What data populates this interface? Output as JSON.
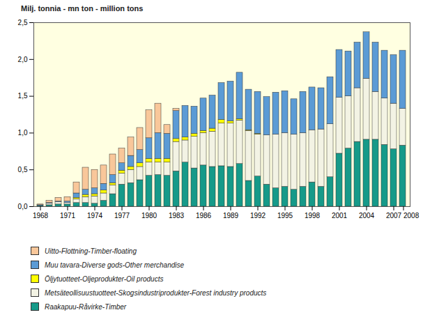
{
  "chart_data": {
    "type": "bar",
    "title": "Milj. tonnia - mn ton - million tons",
    "stacked": true,
    "grid": false,
    "legend": "bottom",
    "categories": [
      "1968",
      null,
      null,
      "1971",
      null,
      null,
      "1974",
      null,
      null,
      "1977",
      null,
      null,
      "1980",
      null,
      null,
      "1983",
      null,
      null,
      "1986",
      null,
      null,
      "1989",
      null,
      null,
      "1992",
      null,
      null,
      "1995",
      null,
      null,
      "1998",
      null,
      null,
      "2001",
      null,
      null,
      "2004",
      null,
      null,
      "2007",
      "2008"
    ],
    "ylim": [
      0,
      2.5
    ],
    "yticks": [
      {
        "value": 0,
        "label": "0,0"
      },
      {
        "value": 0.5,
        "label": "0,5"
      },
      {
        "value": 1,
        "label": "1,0"
      },
      {
        "value": 1.5,
        "label": "1,5"
      },
      {
        "value": 2,
        "label": "2,0"
      },
      {
        "value": 2.5,
        "label": "2,5"
      }
    ],
    "series": [
      {
        "name": "Uitto-Flottning-Timber-floating",
        "color": "#f9c79a",
        "values": [
          0.01,
          0.03,
          0.05,
          0.06,
          0.15,
          0.3,
          0.25,
          0.25,
          0.28,
          0.2,
          0.25,
          0.3,
          0.38,
          0.4,
          0.12,
          0.03,
          0,
          0,
          0,
          0,
          0,
          0,
          0,
          0,
          0,
          0,
          0,
          0,
          0,
          0,
          0,
          0,
          0,
          0,
          0,
          0,
          0,
          0,
          0,
          0,
          0
        ]
      },
      {
        "name": "Muu tavara-Diverse gods-Other merchandise",
        "color": "#5b9bd5",
        "values": [
          0.01,
          0.01,
          0.01,
          0.02,
          0.06,
          0.07,
          0.08,
          0.09,
          0.11,
          0.1,
          0.15,
          0.18,
          0.28,
          0.35,
          0.34,
          0.38,
          0.43,
          0.37,
          0.44,
          0.45,
          0.5,
          0.54,
          0.63,
          0.55,
          0.57,
          0.52,
          0.57,
          0.57,
          0.48,
          0.56,
          0.58,
          0.56,
          0.64,
          0.65,
          0.61,
          0.62,
          0.63,
          0.67,
          0.65,
          0.66,
          0.79
        ]
      },
      {
        "name": "Öljytuotteet-Oljeprodukter-Oil products",
        "color": "#ffff00",
        "values": [
          0,
          0,
          0,
          0,
          0.02,
          0.03,
          0.03,
          0.04,
          0.03,
          0.04,
          0.04,
          0.05,
          0.05,
          0.05,
          0.05,
          0.04,
          0.04,
          0.04,
          0.03,
          0.04,
          0.05,
          0.03,
          0.02,
          0.01,
          0.01,
          0,
          0,
          0,
          0,
          0,
          0,
          0,
          0,
          0,
          0,
          0,
          0,
          0,
          0,
          0,
          0
        ]
      },
      {
        "name": "Metsäteollisuustuotteet-Skogsindustriprodukter-Forest industry products",
        "color": "#f3f3e4",
        "values": [
          0,
          0.02,
          0.03,
          0.02,
          0.05,
          0.08,
          0.1,
          0.1,
          0.12,
          0.15,
          0.18,
          0.18,
          0.18,
          0.17,
          0.18,
          0.4,
          0.3,
          0.43,
          0.44,
          0.48,
          0.58,
          0.59,
          0.59,
          0.68,
          0.57,
          0.67,
          0.73,
          0.73,
          0.75,
          0.73,
          0.71,
          0.78,
          0.72,
          0.76,
          0.71,
          0.73,
          0.83,
          0.65,
          0.63,
          0.62,
          0.5
        ]
      },
      {
        "name": "Raakapuu-Råvirke-Timber",
        "color": "#169a89",
        "values": [
          0.01,
          0.02,
          0.03,
          0.03,
          0.05,
          0.05,
          0.04,
          0.08,
          0.17,
          0.3,
          0.32,
          0.36,
          0.42,
          0.43,
          0.42,
          0.48,
          0.6,
          0.52,
          0.56,
          0.54,
          0.55,
          0.54,
          0.58,
          0.35,
          0.41,
          0.3,
          0.25,
          0.27,
          0.23,
          0.27,
          0.33,
          0.27,
          0.4,
          0.72,
          0.79,
          0.88,
          0.91,
          0.91,
          0.84,
          0.78,
          0.83
        ]
      }
    ]
  }
}
